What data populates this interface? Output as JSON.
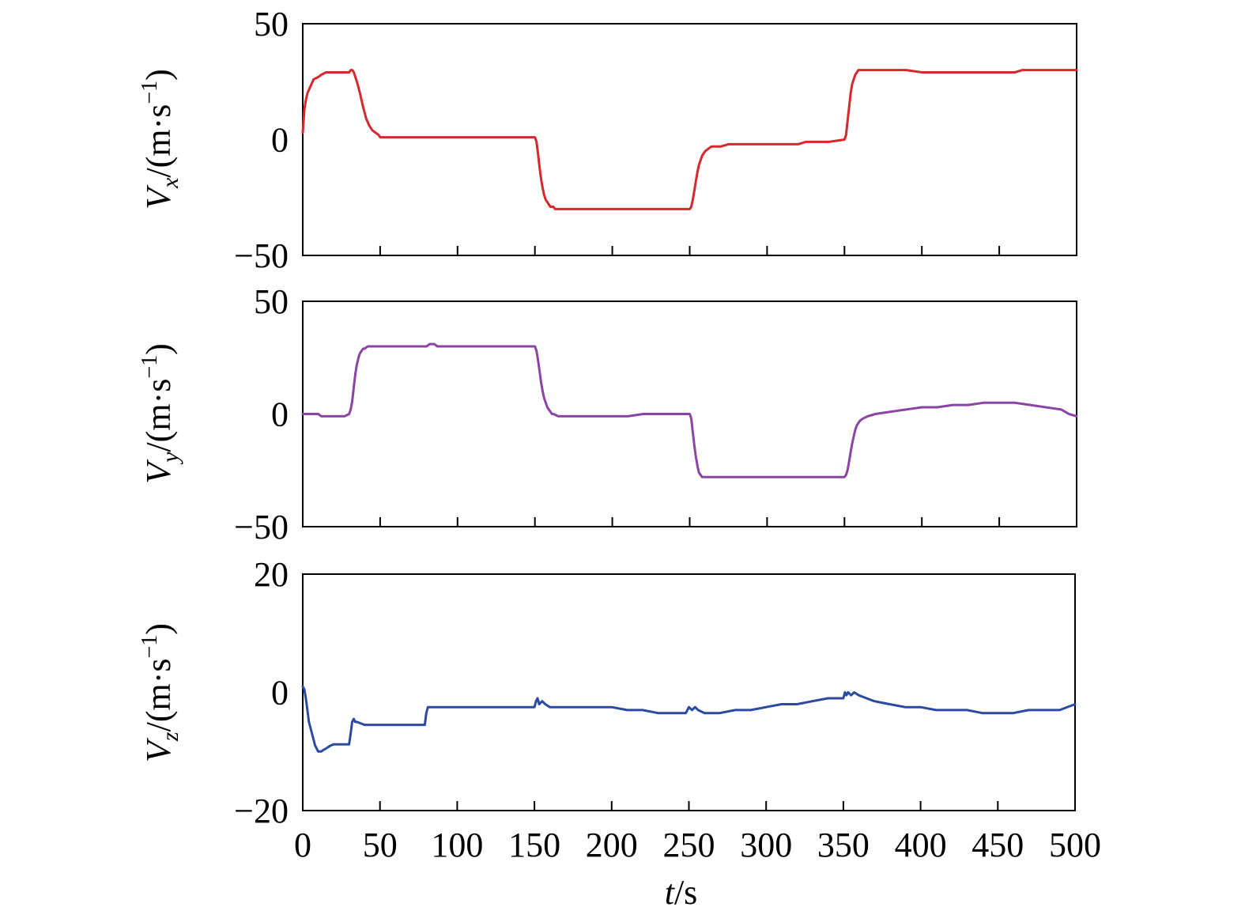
{
  "chart_data": [
    {
      "type": "line",
      "ylabel": "V_x/(m·s^−1)",
      "ylabel_parts": {
        "var": "V",
        "sub": "x",
        "unit": "/(m·s",
        "sup": "−1",
        "close": ")"
      },
      "ylim": [
        -50,
        50
      ],
      "yticks": [
        -50,
        0,
        50
      ],
      "ytick_labels": [
        "−50",
        "0",
        "50"
      ],
      "xlim": [
        0,
        500
      ],
      "color": "#d6282d",
      "x_tick_labels_visible": false,
      "series": [
        {
          "x": [
            0,
            1,
            2,
            3,
            5,
            7,
            10,
            12,
            15,
            20,
            25,
            30,
            31,
            32,
            33,
            35,
            37,
            39,
            41,
            43,
            45,
            47,
            49,
            50,
            60,
            80,
            100,
            120,
            140,
            150,
            151,
            152,
            153,
            154,
            155,
            156,
            157,
            158,
            159,
            160,
            161,
            162,
            163,
            165,
            170,
            180,
            200,
            220,
            240,
            250,
            251,
            252,
            253,
            254,
            255,
            256,
            257,
            258,
            260,
            262,
            264,
            266,
            270,
            275,
            280,
            300,
            320,
            325,
            340,
            350,
            351,
            352,
            353,
            354,
            355,
            356,
            357,
            358,
            359,
            360,
            361,
            362,
            365,
            370,
            380,
            390,
            400,
            410,
            420,
            440,
            460,
            465,
            470,
            480,
            490,
            500
          ],
          "y": [
            3,
            13,
            17,
            20,
            23,
            26,
            27,
            28,
            29,
            29,
            29,
            29,
            30,
            30,
            29,
            25,
            20,
            14,
            9,
            6,
            4,
            3,
            2,
            1,
            1,
            1,
            1,
            1,
            1,
            1,
            -1,
            -6,
            -12,
            -17,
            -21,
            -24,
            -26,
            -27,
            -28,
            -29,
            -29,
            -29,
            -30,
            -30,
            -30,
            -30,
            -30,
            -30,
            -30,
            -30,
            -29,
            -26,
            -22,
            -18,
            -14,
            -11,
            -9,
            -7,
            -5,
            -4,
            -3,
            -3,
            -3,
            -2,
            -2,
            -2,
            -2,
            -1,
            -1,
            0,
            2,
            8,
            14,
            20,
            24,
            26,
            28,
            29,
            30,
            30,
            30,
            30,
            30,
            30,
            30,
            30,
            29,
            29,
            29,
            29,
            29,
            30,
            30,
            30,
            30,
            30
          ]
        }
      ]
    },
    {
      "type": "line",
      "ylabel": "V_y/(m·s^−1)",
      "ylabel_parts": {
        "var": "V",
        "sub": "y",
        "unit": "/(m·s",
        "sup": "−1",
        "close": ")"
      },
      "ylim": [
        -50,
        50
      ],
      "yticks": [
        -50,
        0,
        50
      ],
      "ytick_labels": [
        "−50",
        "0",
        "50"
      ],
      "xlim": [
        0,
        500
      ],
      "color": "#8b44a6",
      "x_tick_labels_visible": false,
      "series": [
        {
          "x": [
            0,
            10,
            12,
            20,
            25,
            27,
            30,
            31,
            32,
            33,
            34,
            35,
            36,
            37,
            38,
            39,
            40,
            42,
            45,
            50,
            60,
            70,
            80,
            82,
            85,
            87,
            90,
            100,
            120,
            140,
            150,
            151,
            152,
            153,
            154,
            155,
            156,
            157,
            158,
            159,
            160,
            161,
            162,
            165,
            170,
            180,
            200,
            210,
            220,
            230,
            240,
            245,
            250,
            251,
            252,
            253,
            254,
            255,
            256,
            257,
            258,
            259,
            260,
            262,
            265,
            270,
            280,
            300,
            320,
            340,
            350,
            351,
            352,
            353,
            354,
            355,
            356,
            357,
            358,
            360,
            362,
            365,
            370,
            380,
            390,
            400,
            410,
            420,
            430,
            440,
            450,
            460,
            470,
            480,
            490,
            495,
            500
          ],
          "y": [
            0,
            0,
            -1,
            -1,
            -1,
            -1,
            0,
            2,
            6,
            12,
            18,
            22,
            25,
            27,
            28,
            29,
            29,
            30,
            30,
            30,
            30,
            30,
            30,
            31,
            31,
            30,
            30,
            30,
            30,
            30,
            30,
            28,
            24,
            19,
            14,
            10,
            7,
            5,
            3,
            2,
            1,
            0,
            0,
            -1,
            -1,
            -1,
            -1,
            -1,
            0,
            0,
            0,
            0,
            0,
            -2,
            -8,
            -14,
            -19,
            -23,
            -26,
            -27,
            -28,
            -28,
            -28,
            -28,
            -28,
            -28,
            -28,
            -28,
            -28,
            -28,
            -28,
            -27,
            -25,
            -21,
            -17,
            -13,
            -10,
            -7,
            -5,
            -3,
            -2,
            -1,
            0,
            1,
            2,
            3,
            3,
            4,
            4,
            5,
            5,
            5,
            4,
            3,
            2,
            0,
            -1
          ]
        }
      ]
    },
    {
      "type": "line",
      "ylabel": "V_z/(m·s^−1)",
      "ylabel_parts": {
        "var": "V",
        "sub": "z",
        "unit": "/(m·s",
        "sup": "−1",
        "close": ")"
      },
      "ylim": [
        -20,
        20
      ],
      "yticks": [
        -20,
        0,
        20
      ],
      "ytick_labels": [
        "−20",
        "0",
        "20"
      ],
      "xlim": [
        0,
        500
      ],
      "xticks": [
        0,
        50,
        100,
        150,
        200,
        250,
        300,
        350,
        400,
        450,
        500
      ],
      "xtick_labels": [
        "0",
        "50",
        "100",
        "150",
        "200",
        "250",
        "300",
        "350",
        "400",
        "450",
        "500"
      ],
      "xlabel": "t/s",
      "xlabel_parts": {
        "var": "t",
        "unit": "/s"
      },
      "color": "#2b4aa3",
      "x_tick_labels_visible": true,
      "series": [
        {
          "x": [
            0,
            1,
            2,
            3,
            4,
            5,
            6,
            7,
            8,
            9,
            10,
            11,
            12,
            13,
            15,
            18,
            20,
            25,
            30,
            31,
            32,
            33,
            34,
            35,
            40,
            45,
            50,
            60,
            70,
            79,
            80,
            81,
            85,
            90,
            100,
            120,
            140,
            150,
            151,
            152,
            153,
            155,
            157,
            160,
            170,
            180,
            200,
            210,
            220,
            230,
            240,
            248,
            250,
            252,
            254,
            256,
            260,
            270,
            280,
            290,
            300,
            310,
            320,
            330,
            340,
            350,
            351,
            352,
            353,
            355,
            357,
            360,
            365,
            370,
            380,
            390,
            400,
            410,
            420,
            430,
            440,
            450,
            460,
            470,
            480,
            490,
            500
          ],
          "y": [
            1,
            0.5,
            -1,
            -3,
            -5,
            -6,
            -7,
            -8,
            -9,
            -9.5,
            -10,
            -10,
            -10,
            -9.8,
            -9.5,
            -9,
            -8.8,
            -8.8,
            -8.8,
            -7,
            -5,
            -4.5,
            -5,
            -5,
            -5.5,
            -5.5,
            -5.5,
            -5.5,
            -5.5,
            -5.5,
            -3.5,
            -2.5,
            -2.5,
            -2.5,
            -2.5,
            -2.5,
            -2.5,
            -2.5,
            -1.5,
            -1,
            -2,
            -1.5,
            -2,
            -2.5,
            -2.5,
            -2.5,
            -2.5,
            -3,
            -3,
            -3.5,
            -3.5,
            -3.5,
            -2.5,
            -3,
            -2.5,
            -3,
            -3.5,
            -3.5,
            -3,
            -3,
            -2.5,
            -2,
            -2,
            -1.5,
            -1,
            -1,
            0,
            -0.5,
            0,
            -0.5,
            0,
            -0.5,
            -1,
            -1.5,
            -2,
            -2.5,
            -2.5,
            -3,
            -3,
            -3,
            -3.5,
            -3.5,
            -3.5,
            -3,
            -3,
            -3,
            -2
          ]
        }
      ]
    }
  ]
}
